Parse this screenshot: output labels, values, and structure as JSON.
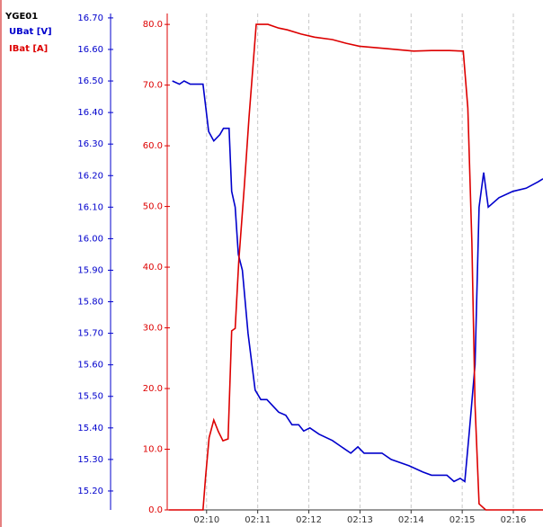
{
  "chart_data": {
    "type": "line",
    "title": "YGE01",
    "xlim": [
      9.23,
      16.58
    ],
    "xticks": [
      {
        "value": 10,
        "label": "02:10"
      },
      {
        "value": 11,
        "label": "02:11"
      },
      {
        "value": 12,
        "label": "02:12"
      },
      {
        "value": 13,
        "label": "02:13"
      },
      {
        "value": 14,
        "label": "02:14"
      },
      {
        "value": 15,
        "label": "02:15"
      },
      {
        "value": 16,
        "label": "02:16"
      }
    ],
    "ylim": [
      15.14,
      16.714
    ],
    "yticks": [
      {
        "value": 15.2,
        "label": "15.20"
      },
      {
        "value": 15.3,
        "label": "15.30"
      },
      {
        "value": 15.4,
        "label": "15.40"
      },
      {
        "value": 15.5,
        "label": "15.50"
      },
      {
        "value": 15.6,
        "label": "15.60"
      },
      {
        "value": 15.7,
        "label": "15.70"
      },
      {
        "value": 15.8,
        "label": "15.80"
      },
      {
        "value": 15.9,
        "label": "15.90"
      },
      {
        "value": 16.0,
        "label": "16.00"
      },
      {
        "value": 16.1,
        "label": "16.10"
      },
      {
        "value": 16.2,
        "label": "16.20"
      },
      {
        "value": 16.3,
        "label": "16.30"
      },
      {
        "value": 16.4,
        "label": "16.40"
      },
      {
        "value": 16.5,
        "label": "16.50"
      },
      {
        "value": 16.6,
        "label": "16.60"
      },
      {
        "value": 16.7,
        "label": "16.70"
      }
    ],
    "y2lim": [
      0,
      81.8
    ],
    "y2ticks": [
      {
        "value": 0,
        "label": "0.0"
      },
      {
        "value": 10,
        "label": "10.0"
      },
      {
        "value": 20,
        "label": "20.0"
      },
      {
        "value": 30,
        "label": "30.0"
      },
      {
        "value": 40,
        "label": "40.0"
      },
      {
        "value": 50,
        "label": "50.0"
      },
      {
        "value": 60,
        "label": "60.0"
      },
      {
        "value": 70,
        "label": "70.0"
      },
      {
        "value": 80,
        "label": "80.0"
      }
    ],
    "grid": true,
    "series": [
      {
        "name": "UBat [V]",
        "color": "#0000cc",
        "x": [
          9.33,
          9.47,
          9.56,
          9.68,
          9.93,
          10.04,
          10.14,
          10.26,
          10.33,
          10.44,
          10.49,
          10.56,
          10.62,
          10.7,
          10.81,
          10.95,
          11.06,
          11.18,
          11.41,
          11.55,
          11.67,
          11.8,
          11.9,
          12.02,
          12.2,
          12.46,
          12.64,
          12.82,
          12.96,
          13.08,
          13.43,
          13.61,
          13.96,
          14.23,
          14.4,
          14.7,
          14.84,
          14.96,
          15.05,
          15.14,
          15.25,
          15.33,
          15.42,
          15.51,
          15.72,
          15.99,
          16.25,
          16.48,
          16.58
        ],
        "values": [
          16.5,
          16.49,
          16.5,
          16.49,
          16.49,
          16.34,
          16.31,
          16.33,
          16.35,
          16.35,
          16.15,
          16.1,
          15.95,
          15.9,
          15.7,
          15.52,
          15.49,
          15.49,
          15.45,
          15.44,
          15.41,
          15.41,
          15.39,
          15.4,
          15.38,
          15.36,
          15.34,
          15.32,
          15.34,
          15.32,
          15.32,
          15.3,
          15.28,
          15.26,
          15.25,
          15.25,
          15.23,
          15.24,
          15.23,
          15.39,
          15.6,
          16.1,
          16.21,
          16.1,
          16.13,
          16.15,
          16.16,
          16.18,
          16.19
        ]
      },
      {
        "name": "IBat [A]",
        "color": "#dd0000",
        "axis": "y2",
        "x": [
          9.26,
          9.93,
          9.98,
          10.05,
          10.14,
          10.23,
          10.32,
          10.42,
          10.49,
          10.56,
          10.63,
          10.74,
          10.83,
          10.97,
          11.2,
          11.41,
          11.58,
          11.85,
          12.11,
          12.46,
          12.73,
          12.99,
          13.52,
          14.05,
          14.4,
          14.75,
          15.02,
          15.11,
          15.19,
          15.25,
          15.33,
          15.46,
          16.58
        ],
        "values": [
          0,
          0,
          5.5,
          11.9,
          14.8,
          12.9,
          11.4,
          11.7,
          29.5,
          29.9,
          41.0,
          53.6,
          64.7,
          80.0,
          80.0,
          79.4,
          79.1,
          78.4,
          77.9,
          77.5,
          76.9,
          76.4,
          76.0,
          75.6,
          75.7,
          75.7,
          75.6,
          66.2,
          44.0,
          17.3,
          1.0,
          0,
          0
        ]
      }
    ]
  }
}
